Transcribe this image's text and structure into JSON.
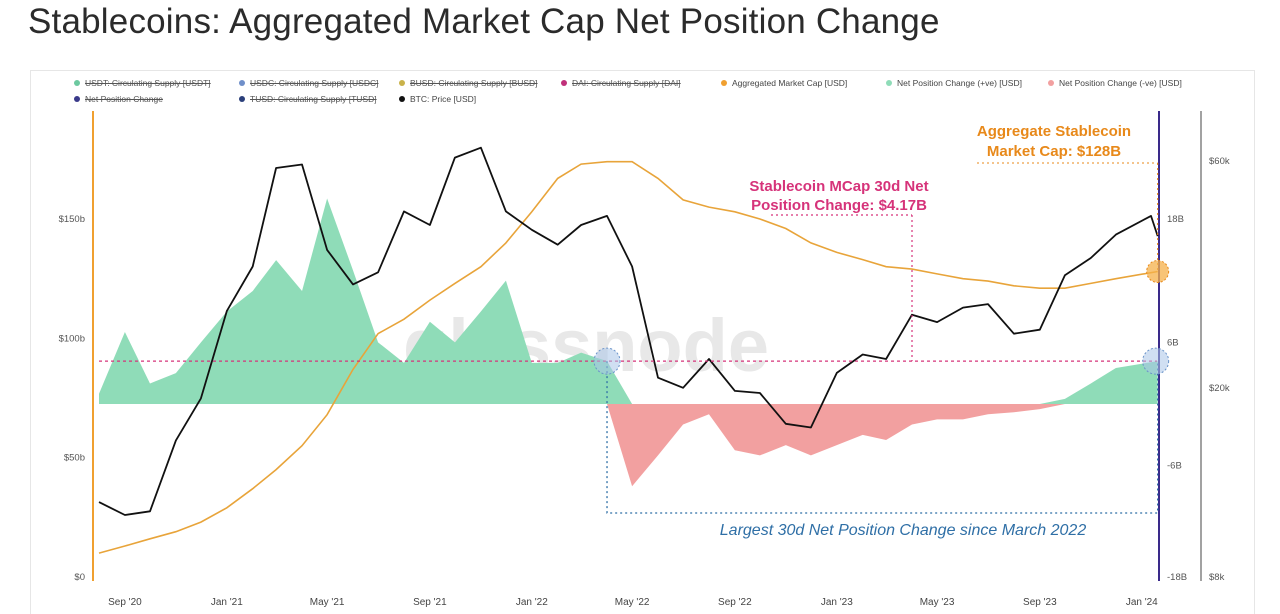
{
  "page": {
    "title": "Stablecoins: Aggregated Market Cap Net Position Change"
  },
  "legend": [
    {
      "label": "USDT: Circulating Supply [USDT]",
      "color": "#6cc9a0",
      "enabled": false
    },
    {
      "label": "USDC: Circulating Supply [USDC]",
      "color": "#6f8fc9",
      "enabled": false
    },
    {
      "label": "BUSD: Circulating Supply [BUSD]",
      "color": "#c9b24a",
      "enabled": false
    },
    {
      "label": "DAI: Circulating Supply [DAI]",
      "color": "#c0307a",
      "enabled": false
    },
    {
      "label": "Aggregated Market Cap [USD]",
      "color": "#f0a030",
      "enabled": true
    },
    {
      "label": "Net Position Change (+ve) [USD]",
      "color": "#8fdcb8",
      "enabled": true
    },
    {
      "label": "Net Position Change (-ve) [USD]",
      "color": "#f2a0a0",
      "enabled": true
    },
    {
      "label": "Net Position Change",
      "color": "#3a3a8a",
      "enabled": false
    },
    {
      "label": "TUSD: Circulating Supply [TUSD]",
      "color": "#2b3f7a",
      "enabled": false
    },
    {
      "label": "BTC: Price [USD]",
      "color": "#111111",
      "enabled": true
    }
  ],
  "annotations": {
    "aggregate": [
      "Aggregate Stablecoin",
      "Market Cap: $128B"
    ],
    "net_change": [
      "Stablecoin MCap 30d Net",
      "Position Change: $4.17B"
    ],
    "largest": "Largest 30d Net Position Change since March 2022",
    "watermark": "glassnode"
  },
  "colors": {
    "positive_fill": "#8fdcb8",
    "negative_fill": "#f2a0a0",
    "market_cap_line": "#e8a43a",
    "btc_line": "#111111",
    "left_axis_line": "#f0a030",
    "right_axis_line": "#3a2a8a",
    "pink_annotation": "#d6337a",
    "orange_annotation": "#e8891a",
    "blue_annotation": "#2f6fa6"
  },
  "chart_data": {
    "type": "line",
    "x_ticks": [
      "Sep '20",
      "Jan '21",
      "May '21",
      "Sep '21",
      "Jan '22",
      "May '22",
      "Sep '22",
      "Jan '23",
      "May '23",
      "Sep '23",
      "Jan '24"
    ],
    "y_left": {
      "ticks": [
        "$0",
        "$50b",
        "$100b",
        "$150b"
      ],
      "range": [
        0,
        175
      ]
    },
    "y_net": {
      "ticks": [
        "-18B",
        "-6B",
        "6B",
        "18B"
      ],
      "range": [
        -18,
        24
      ]
    },
    "y_btc": {
      "ticks": [
        "$8k",
        "$20k",
        "$60k"
      ],
      "scale": "log",
      "range": [
        8000,
        90000
      ]
    },
    "series": [
      {
        "name": "Aggregated Market Cap [USD]",
        "unit": "$b",
        "x": [
          "2020-08-01",
          "2020-09-01",
          "2020-10-01",
          "2020-11-01",
          "2020-12-01",
          "2021-01-01",
          "2021-02-01",
          "2021-03-01",
          "2021-04-01",
          "2021-05-01",
          "2021-06-01",
          "2021-07-01",
          "2021-08-01",
          "2021-09-01",
          "2021-10-01",
          "2021-11-01",
          "2021-12-01",
          "2022-01-01",
          "2022-02-01",
          "2022-03-01",
          "2022-04-01",
          "2022-05-01",
          "2022-06-01",
          "2022-07-01",
          "2022-08-01",
          "2022-09-01",
          "2022-10-01",
          "2022-11-01",
          "2022-12-01",
          "2023-01-01",
          "2023-02-01",
          "2023-03-01",
          "2023-04-01",
          "2023-05-01",
          "2023-06-01",
          "2023-07-01",
          "2023-08-01",
          "2023-09-01",
          "2023-10-01",
          "2023-11-01",
          "2023-12-01",
          "2024-01-20"
        ],
        "y": [
          10,
          13,
          16,
          19,
          23,
          29,
          37,
          45,
          55,
          68,
          87,
          102,
          108,
          116,
          123,
          130,
          140,
          153,
          167,
          173,
          174,
          174,
          167,
          158,
          155,
          153,
          150,
          146,
          140,
          136,
          133,
          130,
          129,
          127,
          125,
          124,
          122,
          121,
          121,
          123,
          125,
          128
        ]
      },
      {
        "name": "BTC: Price [USD]",
        "unit": "USD",
        "x": [
          "2020-08-01",
          "2020-09-01",
          "2020-10-01",
          "2020-11-01",
          "2020-12-01",
          "2021-01-01",
          "2021-02-01",
          "2021-03-01",
          "2021-04-01",
          "2021-05-01",
          "2021-06-01",
          "2021-07-01",
          "2021-08-01",
          "2021-09-01",
          "2021-10-01",
          "2021-11-01",
          "2021-12-01",
          "2022-01-01",
          "2022-02-01",
          "2022-03-01",
          "2022-04-01",
          "2022-05-01",
          "2022-06-01",
          "2022-07-01",
          "2022-08-01",
          "2022-09-01",
          "2022-10-01",
          "2022-11-01",
          "2022-12-01",
          "2023-01-01",
          "2023-02-01",
          "2023-03-01",
          "2023-04-01",
          "2023-05-01",
          "2023-06-01",
          "2023-07-01",
          "2023-08-01",
          "2023-09-01",
          "2023-10-01",
          "2023-11-01",
          "2023-12-01",
          "2024-01-12",
          "2024-01-20"
        ],
        "y": [
          11500,
          10800,
          11000,
          15500,
          19000,
          29000,
          36000,
          58000,
          59000,
          39000,
          33000,
          35000,
          47000,
          44000,
          61000,
          64000,
          47000,
          43000,
          40000,
          44000,
          46000,
          36000,
          21000,
          20000,
          23000,
          19700,
          19500,
          16800,
          16500,
          21500,
          23500,
          23000,
          28500,
          27500,
          29500,
          30000,
          26000,
          26500,
          34500,
          37500,
          42000,
          46000,
          41700
        ]
      },
      {
        "name": "Net Position Change [USD] (30d)",
        "unit": "$B",
        "x": [
          "2020-08-01",
          "2020-09-01",
          "2020-10-01",
          "2020-11-01",
          "2020-12-01",
          "2021-01-01",
          "2021-02-01",
          "2021-03-01",
          "2021-04-01",
          "2021-05-01",
          "2021-06-01",
          "2021-07-01",
          "2021-08-01",
          "2021-09-01",
          "2021-10-01",
          "2021-11-01",
          "2021-12-01",
          "2022-01-01",
          "2022-02-01",
          "2022-03-01",
          "2022-04-01",
          "2022-05-01",
          "2022-06-01",
          "2022-07-01",
          "2022-08-01",
          "2022-09-01",
          "2022-10-01",
          "2022-11-01",
          "2022-12-01",
          "2023-01-01",
          "2023-02-01",
          "2023-03-01",
          "2023-04-01",
          "2023-05-01",
          "2023-06-01",
          "2023-07-01",
          "2023-08-01",
          "2023-09-01",
          "2023-10-01",
          "2023-11-01",
          "2023-12-01",
          "2024-01-20"
        ],
        "y": [
          1.0,
          7.0,
          2.0,
          3.0,
          6.0,
          9.0,
          11.0,
          14.0,
          11.0,
          20.0,
          13.0,
          6.0,
          4.0,
          8.0,
          6.0,
          9.0,
          12.0,
          4.0,
          4.0,
          5.0,
          4.17,
          -8.0,
          -5.0,
          -2.0,
          -1.0,
          -4.5,
          -5.0,
          -4.0,
          -5.0,
          -4.0,
          -3.0,
          -3.5,
          -2.0,
          -1.5,
          -1.5,
          -1.0,
          -0.8,
          -0.5,
          0.5,
          2.0,
          3.5,
          4.17
        ]
      }
    ]
  }
}
